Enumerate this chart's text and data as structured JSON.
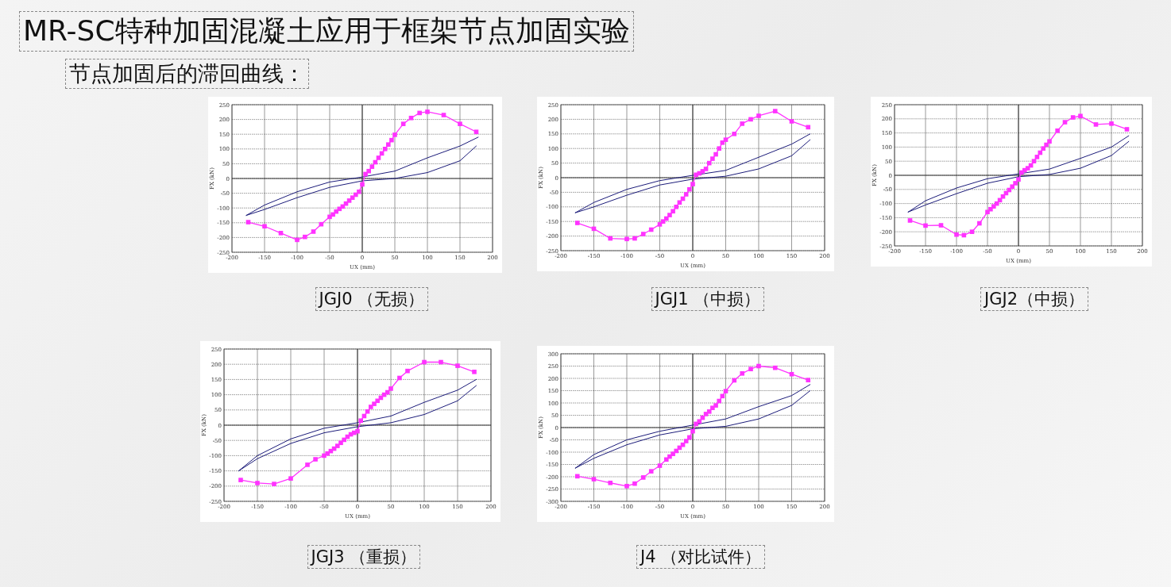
{
  "chart_data": [
    {
      "type": "line",
      "title": "JGJ0 （无损）",
      "xlabel": "UX (mm)",
      "ylabel": "FX (kN)",
      "annotations": [
        "MR-SC特种加固混凝土应用于框架节点加固实验",
        "节点加固后的滞回曲线："
      ],
      "xlim": [
        -200,
        200
      ],
      "ylim": [
        -250,
        250
      ],
      "xticks": [
        -200,
        -150,
        -100,
        -50,
        0,
        50,
        100,
        150,
        200
      ],
      "yticks": [
        -250,
        -200,
        -150,
        -100,
        -50,
        0,
        50,
        100,
        150,
        200,
        250
      ],
      "grid": true,
      "series": [
        {
          "type": "line",
          "color": "#1c1c7a",
          "marker": "none",
          "x": [
            -178,
            -150,
            -100,
            -50,
            0,
            50,
            100,
            150,
            178
          ],
          "values": [
            -125,
            -90,
            -45,
            -12,
            5,
            25,
            70,
            110,
            140
          ]
        },
        {
          "type": "line",
          "color": "#1c1c7a",
          "marker": "none",
          "x": [
            -178,
            -150,
            -100,
            -50,
            0,
            50,
            100,
            150,
            175
          ],
          "values": [
            -125,
            -105,
            -65,
            -30,
            -8,
            0,
            20,
            60,
            110
          ]
        },
        {
          "type": "line",
          "color": "#ff33ff",
          "marker": "square",
          "x": [
            -175,
            -150,
            -125,
            -100,
            -88,
            -75,
            -63,
            -50,
            -45,
            -40,
            -35,
            -30,
            -25,
            -20,
            -15,
            -10,
            -5,
            0,
            5,
            10,
            15,
            20,
            25,
            30,
            35,
            40,
            45,
            50,
            63,
            75,
            88,
            100,
            125,
            150,
            175
          ],
          "values": [
            -148,
            -162,
            -185,
            -208,
            -198,
            -180,
            -155,
            -130,
            -122,
            -112,
            -103,
            -95,
            -85,
            -75,
            -65,
            -55,
            -45,
            -20,
            15,
            25,
            40,
            55,
            70,
            85,
            100,
            115,
            130,
            148,
            185,
            205,
            222,
            226,
            215,
            185,
            158
          ]
        }
      ]
    },
    {
      "type": "line",
      "title": "JGJ1 （中损）",
      "xlabel": "UX (mm)",
      "ylabel": "FX (kN)",
      "xlim": [
        -200,
        200
      ],
      "ylim": [
        -250,
        250
      ],
      "xticks": [
        -200,
        -150,
        -100,
        -50,
        0,
        50,
        100,
        150,
        200
      ],
      "yticks": [
        -250,
        -200,
        -150,
        -100,
        -50,
        0,
        50,
        100,
        150,
        200,
        250
      ],
      "grid": true,
      "series": [
        {
          "type": "line",
          "color": "#1c1c7a",
          "marker": "none",
          "x": [
            -178,
            -150,
            -100,
            -50,
            0,
            50,
            100,
            150,
            178
          ],
          "values": [
            -120,
            -85,
            -40,
            -10,
            8,
            25,
            70,
            115,
            150
          ]
        },
        {
          "type": "line",
          "color": "#1c1c7a",
          "marker": "none",
          "x": [
            -178,
            -150,
            -100,
            -50,
            0,
            50,
            100,
            150,
            178
          ],
          "values": [
            -120,
            -100,
            -60,
            -25,
            -5,
            5,
            30,
            75,
            130
          ]
        },
        {
          "type": "line",
          "color": "#ff33ff",
          "marker": "square",
          "x": [
            -175,
            -150,
            -125,
            -100,
            -88,
            -75,
            -63,
            -50,
            -45,
            -40,
            -35,
            -30,
            -25,
            -20,
            -15,
            -10,
            -5,
            0,
            5,
            10,
            15,
            20,
            25,
            30,
            35,
            40,
            45,
            50,
            63,
            75,
            88,
            100,
            125,
            150,
            175
          ],
          "values": [
            -155,
            -175,
            -208,
            -210,
            -208,
            -193,
            -178,
            -160,
            -150,
            -140,
            -128,
            -115,
            -100,
            -85,
            -72,
            -57,
            -40,
            -22,
            10,
            15,
            22,
            30,
            50,
            65,
            80,
            100,
            120,
            130,
            150,
            185,
            200,
            212,
            228,
            193,
            173
          ]
        }
      ]
    },
    {
      "type": "line",
      "title": "JGJ2（中损）",
      "xlabel": "UX (mm)",
      "ylabel": "FX (kN)",
      "xlim": [
        -200,
        200
      ],
      "ylim": [
        -250,
        250
      ],
      "xticks": [
        -200,
        -150,
        -100,
        -50,
        0,
        50,
        100,
        150,
        200
      ],
      "yticks": [
        -250,
        -200,
        -150,
        -100,
        -50,
        0,
        50,
        100,
        150,
        200,
        250
      ],
      "grid": true,
      "series": [
        {
          "type": "line",
          "color": "#1c1c7a",
          "marker": "none",
          "x": [
            -178,
            -150,
            -100,
            -50,
            0,
            50,
            100,
            150,
            178
          ],
          "values": [
            -130,
            -90,
            -45,
            -12,
            5,
            22,
            60,
            100,
            140
          ]
        },
        {
          "type": "line",
          "color": "#1c1c7a",
          "marker": "none",
          "x": [
            -178,
            -150,
            -100,
            -50,
            0,
            50,
            100,
            150,
            178
          ],
          "values": [
            -130,
            -105,
            -65,
            -28,
            -5,
            3,
            25,
            70,
            120
          ]
        },
        {
          "type": "line",
          "color": "#ff33ff",
          "marker": "square",
          "x": [
            -175,
            -150,
            -125,
            -100,
            -88,
            -75,
            -63,
            -50,
            -45,
            -40,
            -35,
            -30,
            -25,
            -20,
            -15,
            -10,
            -5,
            0,
            5,
            10,
            15,
            20,
            25,
            30,
            35,
            40,
            45,
            50,
            63,
            75,
            88,
            100,
            125,
            150,
            175
          ],
          "values": [
            -160,
            -178,
            -177,
            -210,
            -212,
            -200,
            -170,
            -130,
            -120,
            -110,
            -100,
            -88,
            -75,
            -63,
            -52,
            -40,
            -28,
            -15,
            10,
            18,
            25,
            35,
            50,
            65,
            80,
            95,
            108,
            120,
            158,
            188,
            205,
            210,
            180,
            183,
            163
          ]
        }
      ]
    },
    {
      "type": "line",
      "title": "JGJ3 （重损）",
      "xlabel": "UX (mm)",
      "ylabel": "FX (kN)",
      "xlim": [
        -200,
        200
      ],
      "ylim": [
        -250,
        250
      ],
      "xticks": [
        -200,
        -150,
        -100,
        -50,
        0,
        50,
        100,
        150,
        200
      ],
      "yticks": [
        -250,
        -200,
        -150,
        -100,
        -50,
        0,
        50,
        100,
        150,
        200,
        250
      ],
      "grid": true,
      "series": [
        {
          "type": "line",
          "color": "#1c1c7a",
          "marker": "none",
          "x": [
            -178,
            -150,
            -100,
            -50,
            0,
            50,
            100,
            150,
            178
          ],
          "values": [
            -150,
            -100,
            -45,
            -10,
            8,
            30,
            75,
            115,
            150
          ]
        },
        {
          "type": "line",
          "color": "#1c1c7a",
          "marker": "none",
          "x": [
            -178,
            -150,
            -100,
            -50,
            0,
            50,
            100,
            150,
            178
          ],
          "values": [
            -150,
            -110,
            -60,
            -25,
            -5,
            8,
            35,
            80,
            130
          ]
        },
        {
          "type": "line",
          "color": "#ff33ff",
          "marker": "square",
          "x": [
            -175,
            -150,
            -125,
            -100,
            -75,
            -63,
            -50,
            -45,
            -40,
            -35,
            -30,
            -25,
            -20,
            -15,
            -10,
            -5,
            0,
            5,
            10,
            15,
            20,
            25,
            30,
            35,
            40,
            45,
            50,
            63,
            75,
            100,
            125,
            150,
            175
          ],
          "values": [
            -180,
            -190,
            -193,
            -175,
            -130,
            -112,
            -100,
            -93,
            -85,
            -77,
            -68,
            -58,
            -48,
            -38,
            -30,
            -25,
            -20,
            15,
            30,
            45,
            60,
            70,
            80,
            90,
            100,
            108,
            120,
            155,
            178,
            207,
            207,
            195,
            175
          ]
        }
      ]
    },
    {
      "type": "line",
      "title": "J4 （对比试件）",
      "xlabel": "UX (mm)",
      "ylabel": "FX (kN)",
      "xlim": [
        -200,
        200
      ],
      "ylim": [
        -300,
        300
      ],
      "xticks": [
        -200,
        -150,
        -100,
        -50,
        0,
        50,
        100,
        150,
        200
      ],
      "yticks": [
        -300,
        -250,
        -200,
        -150,
        -100,
        -50,
        0,
        50,
        100,
        150,
        200,
        250,
        300
      ],
      "grid": true,
      "series": [
        {
          "type": "line",
          "color": "#1c1c7a",
          "marker": "none",
          "x": [
            -178,
            -150,
            -100,
            -50,
            0,
            50,
            100,
            150,
            178
          ],
          "values": [
            -165,
            -110,
            -50,
            -15,
            10,
            35,
            85,
            130,
            175
          ]
        },
        {
          "type": "line",
          "color": "#1c1c7a",
          "marker": "none",
          "x": [
            -178,
            -150,
            -100,
            -50,
            0,
            50,
            100,
            150,
            178
          ],
          "values": [
            -165,
            -125,
            -70,
            -30,
            -5,
            5,
            35,
            90,
            150
          ]
        },
        {
          "type": "line",
          "color": "#ff33ff",
          "marker": "square",
          "x": [
            -175,
            -150,
            -125,
            -100,
            -88,
            -75,
            -63,
            -50,
            -40,
            -35,
            -30,
            -25,
            -20,
            -15,
            -10,
            -5,
            0,
            5,
            10,
            15,
            20,
            25,
            30,
            35,
            40,
            45,
            50,
            63,
            75,
            88,
            100,
            125,
            150,
            175
          ],
          "values": [
            -198,
            -210,
            -225,
            -238,
            -228,
            -203,
            -178,
            -155,
            -130,
            -118,
            -107,
            -95,
            -82,
            -70,
            -55,
            -40,
            -15,
            15,
            25,
            40,
            55,
            65,
            80,
            90,
            108,
            128,
            148,
            192,
            220,
            238,
            250,
            243,
            217,
            193
          ]
        }
      ]
    }
  ]
}
